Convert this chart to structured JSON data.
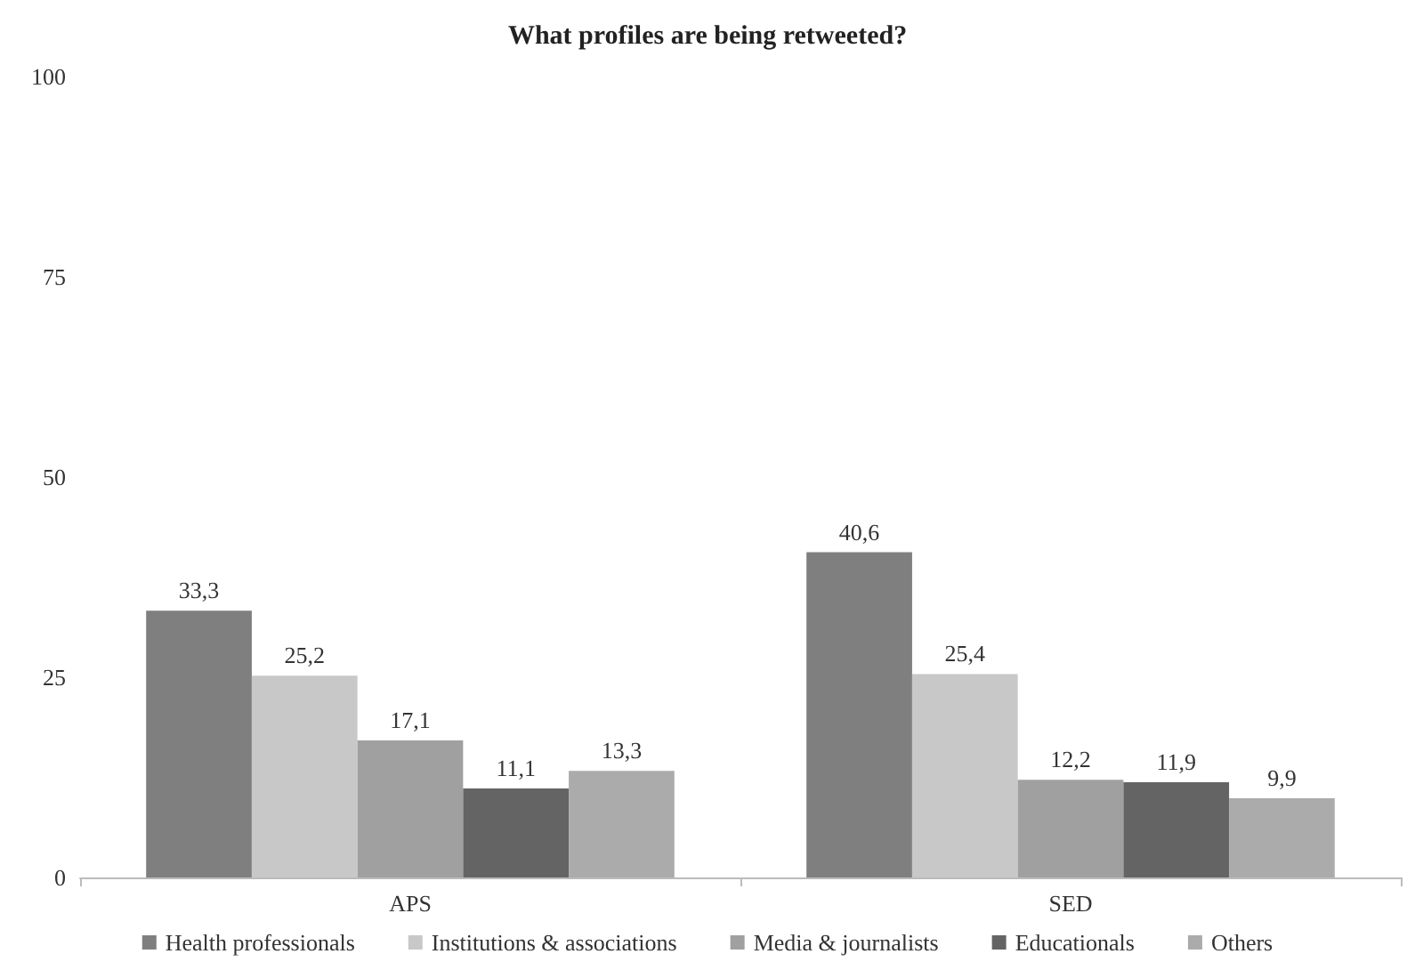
{
  "chart_data": {
    "type": "bar",
    "title": "What profiles are being retweeted?",
    "categories": [
      "APS",
      "SED"
    ],
    "series": [
      {
        "name": "Health professionals",
        "color": "#7f7f7f",
        "values": [
          33.3,
          40.6
        ],
        "value_labels": [
          "33,3",
          "40,6"
        ]
      },
      {
        "name": "Institutions & associations",
        "color": "#c8c8c8",
        "values": [
          25.2,
          25.4
        ],
        "value_labels": [
          "25,2",
          "25,4"
        ]
      },
      {
        "name": "Media & journalists",
        "color": "#a0a0a0",
        "values": [
          17.1,
          12.2
        ],
        "value_labels": [
          "17,1",
          "12,2"
        ]
      },
      {
        "name": "Educationals",
        "color": "#646464",
        "values": [
          11.1,
          11.9
        ],
        "value_labels": [
          "11,1",
          "11,9"
        ]
      },
      {
        "name": "Others",
        "color": "#ababab",
        "values": [
          13.3,
          9.9
        ],
        "value_labels": [
          "13,3",
          "9,9"
        ]
      }
    ],
    "ylim": [
      0,
      100
    ],
    "yticks": [
      0,
      25,
      50,
      75,
      100
    ],
    "grid": false,
    "legend": "bottom"
  }
}
